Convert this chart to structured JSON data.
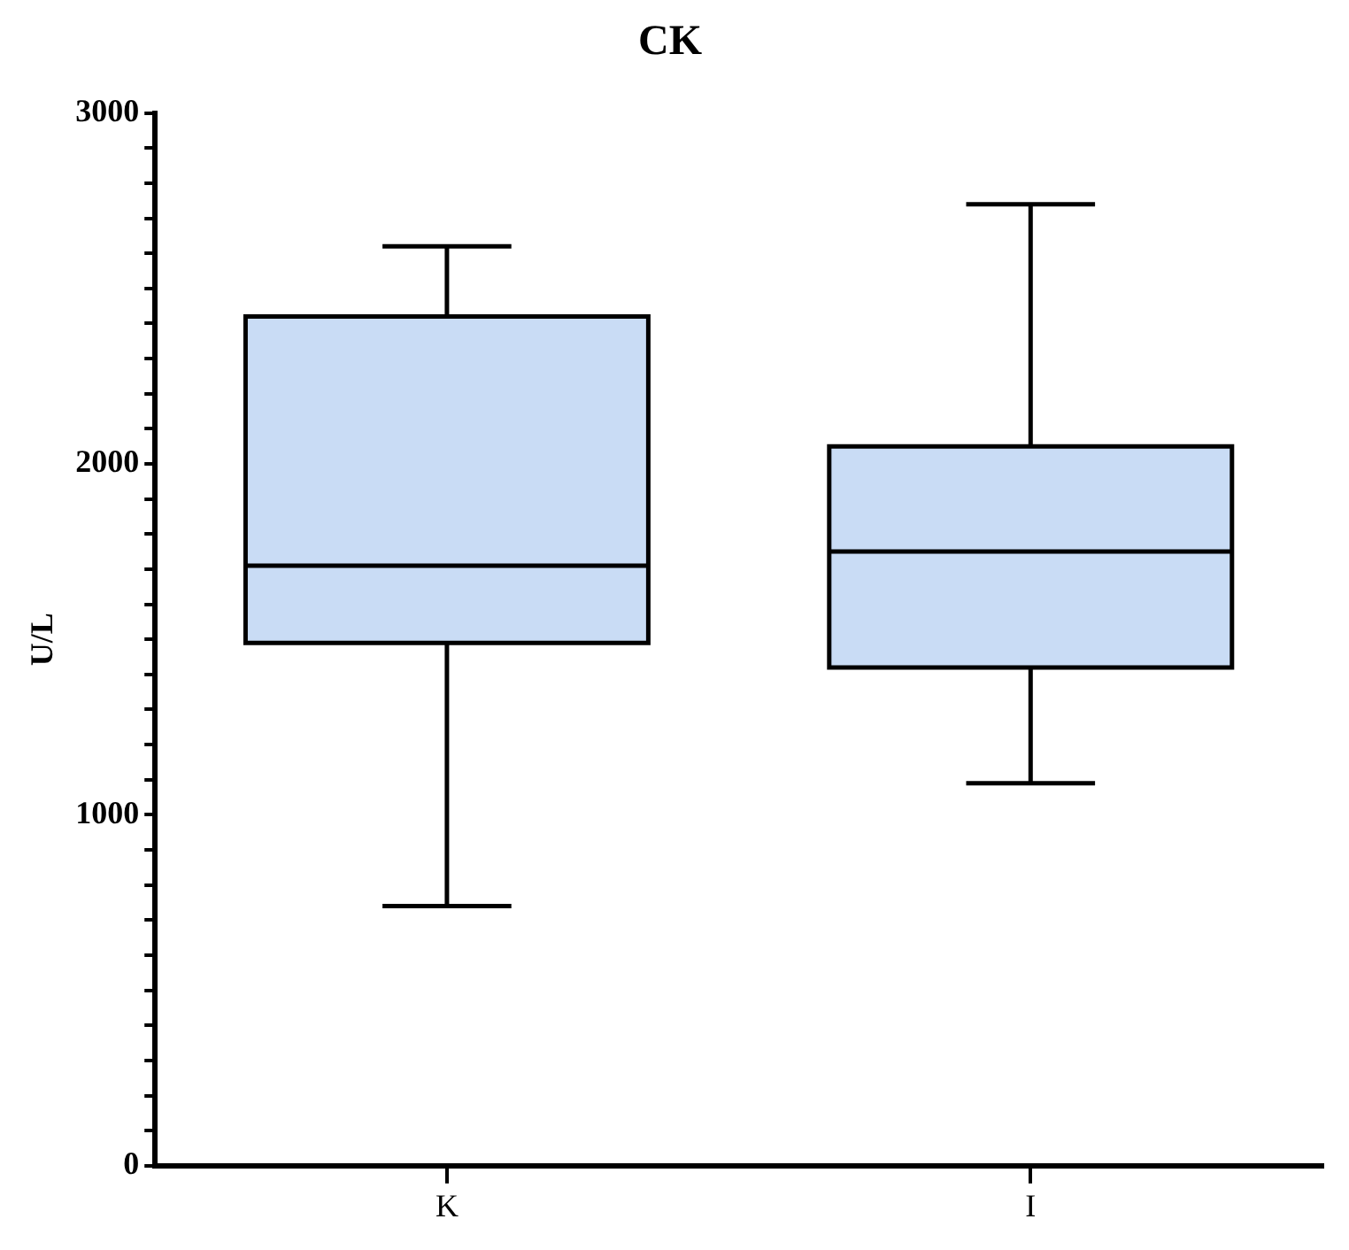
{
  "chart_data": {
    "type": "box",
    "title": "CK",
    "ylabel": "U/L",
    "categories": [
      "K",
      "I"
    ],
    "color": "#c9dcf5",
    "boxes": [
      {
        "low": 740,
        "q1": 1490,
        "median": 1710,
        "q3": 2420,
        "high": 2620
      },
      {
        "low": 1090,
        "q1": 1420,
        "median": 1750,
        "q3": 2050,
        "high": 2740
      }
    ],
    "ylim": [
      0,
      3000
    ],
    "yticks": [
      0,
      {
        "value": 100,
        "label": null
      },
      {
        "value": 200,
        "label": null
      },
      {
        "value": 300,
        "label": null
      },
      {
        "value": 400,
        "label": null
      },
      {
        "value": 500,
        "label": null
      },
      {
        "value": 600,
        "label": null
      },
      {
        "value": 700,
        "label": null
      },
      {
        "value": 800,
        "label": null
      },
      {
        "value": 900,
        "label": null
      },
      1000,
      {
        "value": 1100,
        "label": null
      },
      {
        "value": 1200,
        "label": null
      },
      {
        "value": 1300,
        "label": null
      },
      {
        "value": 1400,
        "label": null
      },
      {
        "value": 1500,
        "label": null
      },
      {
        "value": 1600,
        "label": null
      },
      {
        "value": 1700,
        "label": null
      },
      {
        "value": 1800,
        "label": null
      },
      {
        "value": 1900,
        "label": null
      },
      2000,
      {
        "value": 2100,
        "label": null
      },
      {
        "value": 2200,
        "label": null
      },
      {
        "value": 2300,
        "label": null
      },
      {
        "value": 2400,
        "label": null
      },
      {
        "value": 2500,
        "label": null
      },
      {
        "value": 2600,
        "label": null
      },
      {
        "value": 2700,
        "label": null
      },
      {
        "value": 2800,
        "label": null
      },
      {
        "value": 2900,
        "label": null
      },
      3000
    ],
    "grid": false,
    "legend": false
  }
}
